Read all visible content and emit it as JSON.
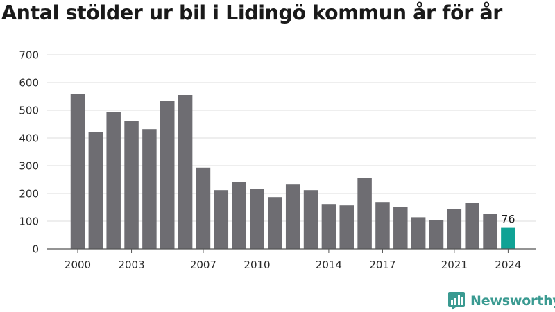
{
  "title": "Antal stölder ur bil i Lidingö kommun år för år",
  "brand": {
    "name": "Newsworthy",
    "color": "#3a9a91"
  },
  "colors": {
    "bar": "#6e6d72",
    "highlight": "#10a295",
    "grid": "#dcdcdc",
    "axis": "#555555"
  },
  "chart_data": {
    "type": "bar",
    "title": "Antal stölder ur bil i Lidingö kommun år för år",
    "xlabel": "",
    "ylabel": "",
    "categories": [
      "2000",
      "2001",
      "2002",
      "2003",
      "2004",
      "2005",
      "2006",
      "2007",
      "2008",
      "2009",
      "2010",
      "2011",
      "2012",
      "2013",
      "2014",
      "2015",
      "2016",
      "2017",
      "2018",
      "2019",
      "2020",
      "2021",
      "2022",
      "2023",
      "2024"
    ],
    "values": [
      558,
      421,
      494,
      460,
      432,
      535,
      555,
      293,
      212,
      240,
      215,
      187,
      232,
      212,
      162,
      157,
      255,
      167,
      150,
      114,
      105,
      145,
      165,
      127,
      76
    ],
    "x_tick_labels": [
      "2000",
      "2003",
      "2007",
      "2010",
      "2014",
      "2017",
      "2021",
      "2024"
    ],
    "y_ticks": [
      0,
      100,
      200,
      300,
      400,
      500,
      600,
      700
    ],
    "ylim": [
      0,
      700
    ],
    "grid": true,
    "highlight": {
      "category": "2024",
      "label": "76"
    }
  }
}
